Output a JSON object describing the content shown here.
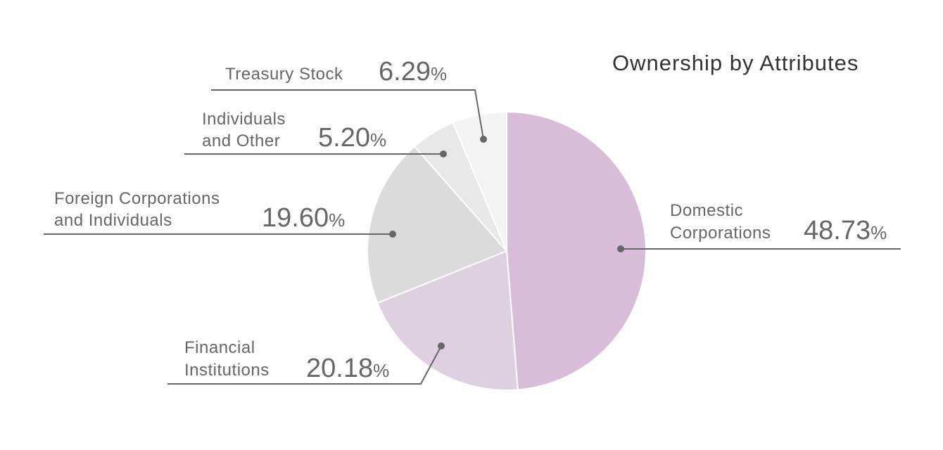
{
  "chart_data": {
    "type": "pie",
    "title": "Ownership by Attributes",
    "start": "12 o'clock, clockwise",
    "slices": [
      {
        "label_lines": [
          "Domestic",
          "Corporations"
        ],
        "value": 48.73,
        "value_text": "48.73",
        "unit": "%",
        "color": "#d8bdd9"
      },
      {
        "label_lines": [
          "Financial",
          "Institutions"
        ],
        "value": 20.18,
        "value_text": "20.18",
        "unit": "%",
        "color": "#dfd0e1"
      },
      {
        "label_lines": [
          "Foreign Corporations",
          "and Individuals"
        ],
        "value": 19.6,
        "value_text": "19.60",
        "unit": "%",
        "color": "#dbdbdb"
      },
      {
        "label_lines": [
          "Individuals",
          "and Other"
        ],
        "value": 5.2,
        "value_text": "5.20",
        "unit": "%",
        "color": "#e8e8e8"
      },
      {
        "label_lines": [
          "Treasury Stock"
        ],
        "value": 6.29,
        "value_text": "6.29",
        "unit": "%",
        "color": "#f3f3f3"
      }
    ]
  }
}
